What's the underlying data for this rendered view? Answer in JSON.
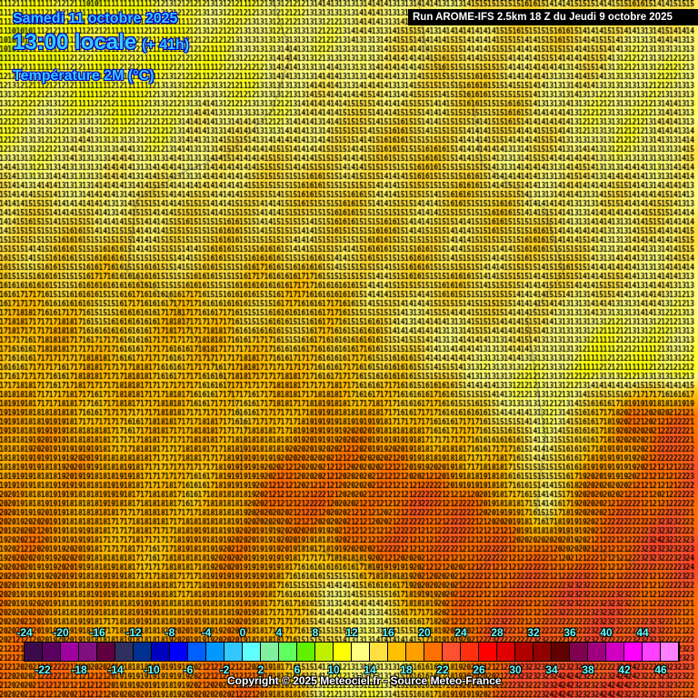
{
  "header": {
    "date": "Samedi 11 octobre 2025",
    "time": "13:00 locale",
    "lead": "(+ 41h)",
    "variable": "Température 2M (°C)",
    "run": "Run AROME-IFS 2.5km 18 Z du Jeudi 9 octobre 2025"
  },
  "copyright": "Copyright © 2025 Meteociel.fr - Source Meteo-France",
  "colorbar": {
    "top_labels": [
      "-24",
      "-20",
      "-16",
      "-12",
      "-8",
      "-4",
      "0",
      "4",
      "8",
      "12",
      "16",
      "20",
      "24",
      "28",
      "32",
      "36",
      "40",
      "44"
    ],
    "bottom_labels": [
      "-22",
      "-18",
      "-14",
      "-10",
      "-6",
      "-2",
      "2",
      "6",
      "10",
      "14",
      "18",
      "22",
      "26",
      "30",
      "34",
      "38",
      "42",
      "46"
    ],
    "min": -24,
    "step": 2,
    "colors": [
      "#3a0a4a",
      "#5a0060",
      "#a000a0",
      "#801080",
      "#600040",
      "#303060",
      "#003090",
      "#0000c0",
      "#0000ff",
      "#0060ff",
      "#0099ff",
      "#30c8ff",
      "#60ffff",
      "#80f0a0",
      "#60ff60",
      "#60f000",
      "#c0f000",
      "#ffff00",
      "#ffff80",
      "#ffe040",
      "#ffc000",
      "#ffa000",
      "#ff7000",
      "#ff5030",
      "#ff3010",
      "#ff0000",
      "#e00000",
      "#b00000",
      "#900000",
      "#600000",
      "#800050",
      "#a00080",
      "#d000c0",
      "#ff00ff",
      "#ff40ff",
      "#ff80ff"
    ]
  },
  "temperature_field_c": [
    [
      11,
      11,
      11,
      12,
      12,
      12,
      13,
      13,
      13,
      14,
      14,
      15,
      15,
      15,
      15,
      14
    ],
    [
      11,
      12,
      11,
      11,
      12,
      12,
      13,
      13,
      14,
      14,
      15,
      15,
      14,
      14,
      12,
      13
    ],
    [
      12,
      12,
      12,
      12,
      13,
      13,
      13,
      14,
      14,
      15,
      15,
      15,
      14,
      13,
      12,
      13
    ],
    [
      13,
      13,
      13,
      13,
      14,
      14,
      14,
      15,
      15,
      15,
      15,
      14,
      14,
      13,
      13,
      14
    ],
    [
      14,
      14,
      14,
      14,
      14,
      15,
      15,
      15,
      15,
      15,
      15,
      15,
      14,
      14,
      14,
      14
    ],
    [
      15,
      15,
      15,
      15,
      15,
      15,
      15,
      15,
      15,
      15,
      15,
      15,
      15,
      14,
      14,
      14
    ],
    [
      16,
      16,
      16,
      15,
      16,
      16,
      16,
      16,
      15,
      15,
      15,
      15,
      15,
      14,
      14,
      14
    ],
    [
      17,
      17,
      16,
      17,
      17,
      16,
      16,
      16,
      15,
      14,
      14,
      14,
      14,
      13,
      12,
      12
    ],
    [
      17,
      17,
      17,
      17,
      17,
      17,
      17,
      17,
      16,
      15,
      14,
      13,
      12,
      11,
      12,
      12
    ],
    [
      18,
      18,
      17,
      17,
      17,
      17,
      17,
      18,
      18,
      17,
      16,
      14,
      13,
      16,
      20,
      21
    ],
    [
      19,
      19,
      18,
      18,
      17,
      18,
      20,
      21,
      20,
      19,
      18,
      17,
      13,
      18,
      20,
      22
    ],
    [
      19,
      19,
      18,
      17,
      17,
      19,
      21,
      21,
      21,
      22,
      21,
      19,
      14,
      20,
      21,
      22
    ],
    [
      20,
      19,
      18,
      17,
      18,
      20,
      20,
      18,
      21,
      22,
      22,
      21,
      20,
      21,
      22,
      23
    ],
    [
      20,
      19,
      18,
      18,
      18,
      19,
      16,
      14,
      15,
      18,
      21,
      22,
      22,
      22,
      22,
      22
    ],
    [
      20,
      19,
      18,
      18,
      19,
      20,
      17,
      14,
      13,
      16,
      20,
      22,
      22,
      23,
      22,
      22
    ],
    [
      21,
      21,
      20,
      19,
      20,
      21,
      18,
      13,
      12,
      15,
      19,
      22,
      23,
      23,
      24,
      22
    ]
  ]
}
